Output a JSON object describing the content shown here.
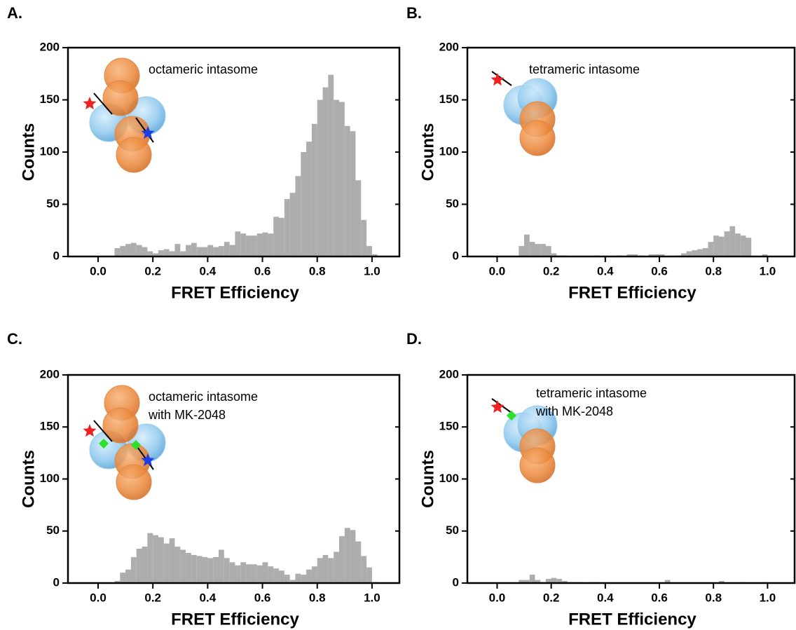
{
  "chart_data": [
    {
      "type": "histogram",
      "panel": "A.",
      "annotation": [
        "octameric intasome"
      ],
      "xlabel": "FRET Efficiency",
      "ylabel": "Counts",
      "color": "#adadad",
      "bins": [
        0.06,
        0.08,
        0.1,
        0.12,
        0.14,
        0.16,
        0.18,
        0.2,
        0.22,
        0.24,
        0.26,
        0.28,
        0.3,
        0.32,
        0.34,
        0.36,
        0.38,
        0.4,
        0.42,
        0.44,
        0.46,
        0.48,
        0.5,
        0.52,
        0.54,
        0.56,
        0.58,
        0.6,
        0.62,
        0.64,
        0.66,
        0.68,
        0.7,
        0.72,
        0.74,
        0.76,
        0.78,
        0.8,
        0.82,
        0.84,
        0.86,
        0.88,
        0.9,
        0.92,
        0.94,
        0.96,
        0.98,
        1.0,
        1.02
      ],
      "values": [
        8,
        10,
        12,
        13,
        11,
        9,
        5,
        3,
        6,
        7,
        5,
        12,
        5,
        11,
        13,
        9,
        9,
        11,
        9,
        10,
        14,
        11,
        24,
        22,
        20,
        20,
        22,
        23,
        22,
        38,
        37,
        55,
        61,
        77,
        100,
        110,
        127,
        150,
        162,
        174,
        150,
        148,
        125,
        120,
        73,
        35,
        10,
        2
      ],
      "xlim": [
        -0.11,
        1.1
      ],
      "ylim": [
        0,
        200
      ],
      "xticks": [
        {
          "value": 0,
          "label": "0.0"
        },
        0.2,
        0.4,
        0.6,
        0.8,
        {
          "value": 1,
          "label": "1.0"
        }
      ],
      "yticks": [
        0,
        50,
        100,
        150,
        200
      ]
    },
    {
      "type": "histogram",
      "panel": "B.",
      "annotation": [
        "tetrameric intasome"
      ],
      "xlabel": "FRET Efficiency",
      "ylabel": "Counts",
      "color": "#adadad",
      "bins": [
        0.06,
        0.08,
        0.1,
        0.12,
        0.14,
        0.16,
        0.18,
        0.2,
        0.22,
        0.24,
        0.26,
        0.28,
        0.3,
        0.32,
        0.34,
        0.36,
        0.38,
        0.4,
        0.42,
        0.44,
        0.46,
        0.48,
        0.5,
        0.52,
        0.54,
        0.56,
        0.58,
        0.6,
        0.62,
        0.64,
        0.66,
        0.68,
        0.7,
        0.72,
        0.74,
        0.76,
        0.78,
        0.8,
        0.82,
        0.84,
        0.86,
        0.88,
        0.9,
        0.92,
        0.94,
        0.96,
        0.98,
        1.0,
        1.02
      ],
      "values": [
        0,
        10,
        21,
        14,
        12,
        12,
        10,
        3,
        1,
        1,
        0,
        0,
        0,
        0,
        0,
        1,
        0,
        0,
        0,
        1,
        0,
        2,
        2,
        1,
        0,
        2,
        2,
        2,
        0,
        0,
        1,
        3,
        5,
        6,
        7,
        8,
        14,
        20,
        19,
        24,
        29,
        22,
        20,
        18,
        0,
        0,
        2,
        0
      ],
      "xlim": [
        -0.11,
        1.1
      ],
      "ylim": [
        0,
        200
      ],
      "xticks": [
        {
          "value": 0,
          "label": "0.0"
        },
        0.2,
        0.4,
        0.6,
        0.8,
        {
          "value": 1,
          "label": "1.0"
        }
      ],
      "yticks": [
        0,
        50,
        100,
        150,
        200
      ]
    },
    {
      "type": "histogram",
      "panel": "C.",
      "annotation": [
        "octameric intasome",
        "with MK-2048"
      ],
      "xlabel": "FRET Efficiency",
      "ylabel": "Counts",
      "color": "#adadad",
      "bins": [
        0.06,
        0.08,
        0.1,
        0.12,
        0.14,
        0.16,
        0.18,
        0.2,
        0.22,
        0.24,
        0.26,
        0.28,
        0.3,
        0.32,
        0.34,
        0.36,
        0.38,
        0.4,
        0.42,
        0.44,
        0.46,
        0.48,
        0.5,
        0.52,
        0.54,
        0.56,
        0.58,
        0.6,
        0.62,
        0.64,
        0.66,
        0.68,
        0.7,
        0.72,
        0.74,
        0.76,
        0.78,
        0.8,
        0.82,
        0.84,
        0.86,
        0.88,
        0.9,
        0.92,
        0.94,
        0.96,
        0.98,
        1.0,
        1.02
      ],
      "values": [
        2,
        10,
        13,
        25,
        33,
        35,
        48,
        46,
        44,
        38,
        43,
        35,
        32,
        29,
        27,
        26,
        25,
        24,
        25,
        32,
        24,
        20,
        17,
        20,
        18,
        18,
        17,
        20,
        16,
        14,
        12,
        8,
        3,
        9,
        8,
        13,
        16,
        24,
        27,
        24,
        30,
        45,
        53,
        51,
        40,
        26,
        15,
        1
      ],
      "xlim": [
        -0.11,
        1.1
      ],
      "ylim": [
        0,
        200
      ],
      "xticks": [
        {
          "value": 0,
          "label": "0.0"
        },
        0.2,
        0.4,
        0.6,
        0.8,
        {
          "value": 1,
          "label": "1.0"
        }
      ],
      "yticks": [
        0,
        50,
        100,
        150,
        200
      ]
    },
    {
      "type": "histogram",
      "panel": "D.",
      "annotation": [
        "tetrameric intasome",
        "with MK-2048"
      ],
      "xlabel": "FRET Efficiency",
      "ylabel": "Counts",
      "color": "#adadad",
      "bins": [
        0.06,
        0.08,
        0.1,
        0.12,
        0.14,
        0.16,
        0.18,
        0.2,
        0.22,
        0.24,
        0.26,
        0.28,
        0.3,
        0.32,
        0.34,
        0.36,
        0.38,
        0.4,
        0.42,
        0.44,
        0.46,
        0.48,
        0.5,
        0.52,
        0.54,
        0.56,
        0.58,
        0.6,
        0.62,
        0.64,
        0.66,
        0.68,
        0.7,
        0.72,
        0.74,
        0.76,
        0.78,
        0.8,
        0.82,
        0.84,
        0.86,
        0.88,
        0.9,
        0.92,
        0.94,
        0.96,
        0.98,
        1.0,
        1.02
      ],
      "values": [
        0,
        3,
        3,
        8,
        3,
        1,
        4,
        5,
        4,
        2,
        1,
        1,
        1,
        0,
        1,
        1,
        0,
        0,
        0,
        0,
        0,
        0,
        0,
        0,
        0,
        0,
        0,
        0,
        3,
        0,
        0,
        0,
        0,
        0,
        0,
        0,
        0,
        0,
        2,
        0,
        0,
        0,
        1,
        0,
        0,
        0,
        1,
        0
      ],
      "xlim": [
        -0.11,
        1.1
      ],
      "ylim": [
        0,
        200
      ],
      "xticks": [
        {
          "value": 0,
          "label": "0.0"
        },
        0.2,
        0.4,
        0.6,
        0.8,
        {
          "value": 1,
          "label": "1.0"
        }
      ],
      "yticks": [
        0,
        50,
        100,
        150,
        200
      ]
    }
  ]
}
